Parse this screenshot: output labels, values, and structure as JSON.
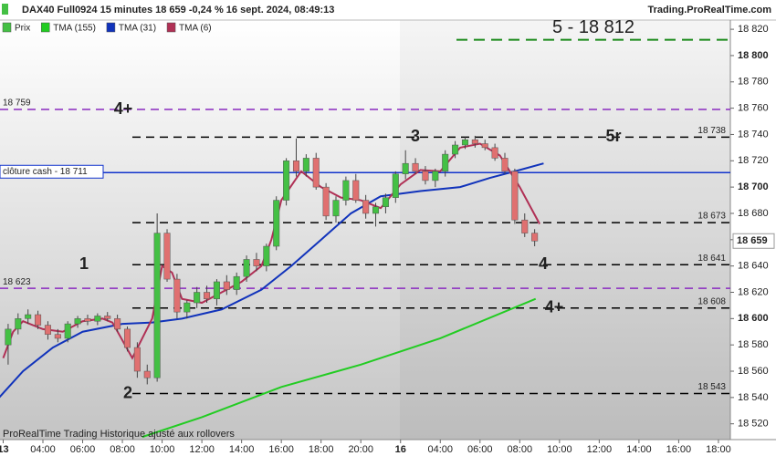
{
  "chart_data": {
    "type": "candlestick",
    "title": "DAX40 Full0924 15 minutes 18 659 -0,24 % 16 sept. 2024, 08:49:13",
    "source": "Trading.ProRealTime.com",
    "footer": "ProRealTime Trading  Historique ajusté aux rollovers",
    "price_name": "Prix",
    "up_color": "#44c044",
    "down_color": "#e07070",
    "last_label": "18 659",
    "x": [
      0.25,
      0.75,
      1.25,
      1.75,
      2.25,
      2.75,
      3.25,
      3.75,
      4.25,
      4.75,
      5.25,
      5.75,
      6.25,
      6.75,
      7.25,
      7.75,
      8.25,
      8.75,
      9.25,
      9.75,
      10.25,
      10.75,
      11.25,
      11.75,
      12.25,
      12.75,
      13.25,
      13.75,
      14.25,
      14.75,
      15.25,
      15.75,
      16.25,
      16.75,
      17.25,
      17.75,
      18.25,
      18.75,
      19.25,
      19.75,
      20.25,
      20.75,
      21.25,
      21.75,
      22.25,
      22.75,
      23.25,
      23.75,
      24.25,
      24.75,
      25.25,
      25.75,
      26.25,
      26.75
    ],
    "open": [
      18580,
      18592,
      18600,
      18603,
      18595,
      18588,
      18585,
      18596,
      18600,
      18598,
      18602,
      18600,
      18592,
      18578,
      18560,
      18555,
      18665,
      18630,
      18605,
      18612,
      18620,
      18615,
      18628,
      18622,
      18632,
      18645,
      18640,
      18655,
      18690,
      18720,
      18712,
      18722,
      18700,
      18678,
      18690,
      18705,
      18690,
      18680,
      18685,
      18692,
      18710,
      18718,
      18712,
      18705,
      18712,
      18725,
      18732,
      18736,
      18733,
      18730,
      18722,
      18712,
      18675,
      18665
    ],
    "high": [
      18596,
      18604,
      18607,
      18606,
      18598,
      18592,
      18598,
      18602,
      18603,
      18604,
      18605,
      18603,
      18594,
      18582,
      18565,
      18680,
      18668,
      18634,
      18614,
      18624,
      18625,
      18630,
      18633,
      18635,
      18648,
      18650,
      18657,
      18693,
      18722,
      18737,
      18725,
      18726,
      18703,
      18693,
      18708,
      18710,
      18694,
      18688,
      18695,
      18712,
      18728,
      18722,
      18716,
      18714,
      18728,
      18735,
      18738,
      18739,
      18736,
      18733,
      18726,
      18714,
      18680,
      18668
    ],
    "low": [
      18565,
      18588,
      18596,
      18592,
      18584,
      18582,
      18582,
      18593,
      18595,
      18595,
      18598,
      18590,
      18575,
      18555,
      18550,
      18552,
      18628,
      18600,
      18600,
      18608,
      18612,
      18610,
      18618,
      18618,
      18628,
      18636,
      18636,
      18652,
      18686,
      18708,
      18708,
      18698,
      18675,
      18673,
      18686,
      18688,
      18676,
      18670,
      18680,
      18688,
      18706,
      18710,
      18702,
      18700,
      18708,
      18722,
      18729,
      18730,
      18728,
      18720,
      18710,
      18672,
      18662,
      18655
    ],
    "close": [
      18592,
      18600,
      18603,
      18595,
      18588,
      18585,
      18596,
      18600,
      18598,
      18602,
      18600,
      18592,
      18578,
      18560,
      18555,
      18665,
      18630,
      18605,
      18612,
      18620,
      18615,
      18628,
      18622,
      18632,
      18645,
      18640,
      18655,
      18690,
      18720,
      18712,
      18722,
      18700,
      18678,
      18690,
      18705,
      18690,
      18680,
      18685,
      18692,
      18710,
      18718,
      18712,
      18705,
      18712,
      18725,
      18732,
      18736,
      18733,
      18730,
      18722,
      18712,
      18675,
      18665,
      18659
    ],
    "series": [
      {
        "name": "TMA (155)",
        "color": "#22cc22",
        "x": [
          7,
          10,
          14,
          18,
          22,
          26.8
        ],
        "values": [
          18510,
          18525,
          18548,
          18565,
          18585,
          18615
        ]
      },
      {
        "name": "TMA (31)",
        "color": "#1133bb",
        "x": [
          -0.2,
          1,
          2.5,
          4,
          6,
          7.5,
          9,
          11,
          13,
          14.5,
          16,
          17.5,
          19,
          21,
          23,
          24.5,
          26,
          27.2
        ],
        "values": [
          18540,
          18560,
          18578,
          18590,
          18596,
          18597,
          18600,
          18607,
          18622,
          18640,
          18660,
          18680,
          18693,
          18697,
          18700,
          18707,
          18713,
          18718
        ]
      },
      {
        "name": "TMA (6)",
        "color": "#b03055",
        "x": [
          0,
          0.5,
          1,
          2,
          3,
          4,
          5,
          5.5,
          6.5,
          7.5,
          8,
          8.5,
          9,
          10,
          11,
          12,
          13,
          13.5,
          14,
          15,
          16,
          17,
          18,
          19,
          20,
          21,
          22,
          23,
          24,
          25,
          26,
          27
        ],
        "values": [
          18570,
          18590,
          18598,
          18592,
          18590,
          18598,
          18600,
          18597,
          18570,
          18600,
          18640,
          18635,
          18615,
          18612,
          18620,
          18628,
          18640,
          18660,
          18690,
          18712,
          18700,
          18692,
          18690,
          18684,
          18702,
          18713,
          18712,
          18730,
          18733,
          18724,
          18700,
          18672
        ]
      }
    ],
    "levels": [
      {
        "value": 18812,
        "color": "#1a8a1a",
        "style": "dashed",
        "tags": [
          "5 - 18 812"
        ]
      },
      {
        "value": 18759,
        "color": "#8a2bc0",
        "style": "dashed",
        "left_label": "18 759",
        "tags": [
          "4+"
        ]
      },
      {
        "value": 18738,
        "color": "#000000",
        "style": "dashed",
        "right_label": "18 738",
        "tags": [
          "3",
          "5r"
        ]
      },
      {
        "value": 18711,
        "color": "#1133cc",
        "style": "solid",
        "left_label": "clôture cash - 18 711"
      },
      {
        "value": 18673,
        "color": "#000000",
        "style": "dashed",
        "right_label": "18 673"
      },
      {
        "value": 18641,
        "color": "#000000",
        "style": "dashed",
        "right_label": "18 641",
        "tags": [
          "1",
          "4"
        ]
      },
      {
        "value": 18623,
        "color": "#8a2bc0",
        "style": "dashed",
        "left_label": "18 623"
      },
      {
        "value": 18608,
        "color": "#000000",
        "style": "dashed",
        "right_label": "18 608",
        "tags": [
          "4+"
        ]
      },
      {
        "value": 18543,
        "color": "#000000",
        "style": "dashed",
        "right_label": "18 543",
        "tags": [
          "2"
        ]
      }
    ],
    "xlim": [
      -0.16,
      36.6
    ],
    "ylim": [
      18508,
      18827
    ],
    "xticks": [
      {
        "value": 0,
        "label": "13"
      },
      {
        "value": 2,
        "label": "04:00"
      },
      {
        "value": 4,
        "label": "06:00"
      },
      {
        "value": 6,
        "label": "08:00"
      },
      {
        "value": 8,
        "label": "10:00"
      },
      {
        "value": 10,
        "label": "12:00"
      },
      {
        "value": 12,
        "label": "14:00"
      },
      {
        "value": 14,
        "label": "16:00"
      },
      {
        "value": 16,
        "label": "18:00"
      },
      {
        "value": 18,
        "label": "20:00"
      },
      {
        "value": 20,
        "label": "16"
      },
      {
        "value": 22,
        "label": "04:00"
      },
      {
        "value": 24,
        "label": "06:00"
      },
      {
        "value": 26,
        "label": "08:00"
      },
      {
        "value": 28,
        "label": "10:00"
      },
      {
        "value": 30,
        "label": "12:00"
      },
      {
        "value": 32,
        "label": "14:00"
      },
      {
        "value": 34,
        "label": "16:00"
      },
      {
        "value": 36,
        "label": "18:00"
      }
    ],
    "yticks": [
      {
        "value": 18520,
        "label": "18 520"
      },
      {
        "value": 18540,
        "label": "18 540"
      },
      {
        "value": 18560,
        "label": "18 560"
      },
      {
        "value": 18580,
        "label": "18 580"
      },
      {
        "value": 18600,
        "label": "18 600"
      },
      {
        "value": 18620,
        "label": "18 620"
      },
      {
        "value": 18640,
        "label": "18 640"
      },
      {
        "value": 18660,
        "label": "18 660"
      },
      {
        "value": 18680,
        "label": "18 680"
      },
      {
        "value": 18700,
        "label": "18 700"
      },
      {
        "value": 18720,
        "label": "18 720"
      },
      {
        "value": 18740,
        "label": "18 740"
      },
      {
        "value": 18760,
        "label": "18 760"
      },
      {
        "value": 18780,
        "label": "18 780"
      },
      {
        "value": 18800,
        "label": "18 800"
      },
      {
        "value": 18820,
        "label": "18 820"
      }
    ]
  }
}
